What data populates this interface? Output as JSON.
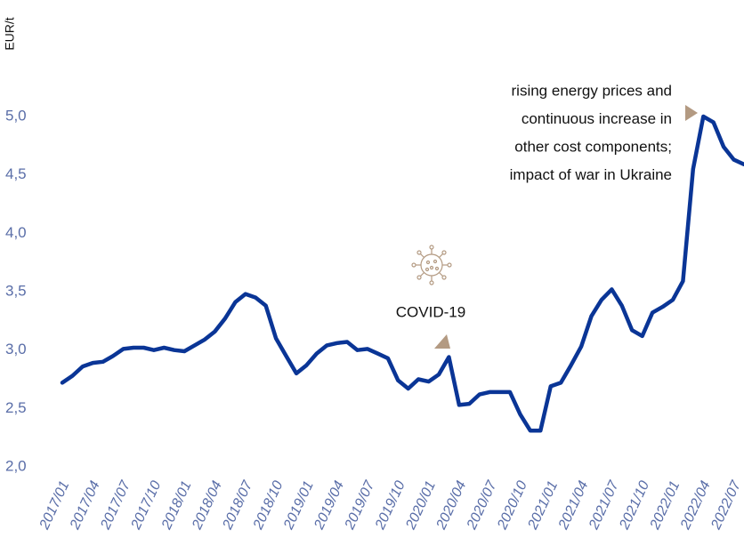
{
  "chart_data": {
    "type": "line",
    "y_label": "EUR/t",
    "annotations": [
      {
        "lines": [
          "rising energy prices and",
          "continuous increase in",
          "other cost components;",
          "impact of war in Ukraine"
        ]
      },
      {
        "lines": [
          "COVID-19"
        ]
      }
    ],
    "categories": [
      "2017/01",
      null,
      null,
      "2017/04",
      null,
      null,
      "2017/07",
      null,
      null,
      "2017/10",
      null,
      null,
      "2018/01",
      null,
      null,
      "2018/04",
      null,
      null,
      "2018/07",
      null,
      null,
      "2018/10",
      null,
      null,
      "2019/01",
      null,
      null,
      "2019/04",
      null,
      null,
      "2019/07",
      null,
      null,
      "2019/10",
      null,
      null,
      "2020/01",
      null,
      null,
      "2020/04",
      null,
      null,
      "2020/07",
      null,
      null,
      "2020/10",
      null,
      null,
      "2021/01",
      null,
      null,
      "2021/04",
      null,
      null,
      "2021/07",
      null,
      null,
      "2021/10",
      null,
      null,
      "2022/01",
      null,
      null,
      "2022/04",
      null,
      null,
      "2022/07",
      null
    ],
    "series": [
      {
        "color": "#0a3596",
        "values": [
          2.72,
          2.78,
          2.86,
          2.89,
          2.9,
          2.95,
          3.01,
          3.02,
          3.02,
          3.0,
          3.02,
          3.0,
          2.99,
          3.04,
          3.09,
          3.16,
          3.27,
          3.41,
          3.48,
          3.45,
          3.38,
          3.1,
          2.95,
          2.8,
          2.87,
          2.97,
          3.04,
          3.06,
          3.07,
          3.0,
          3.01,
          2.97,
          2.93,
          2.74,
          2.67,
          2.75,
          2.73,
          2.79,
          2.94,
          2.53,
          2.54,
          2.62,
          2.64,
          2.64,
          2.64,
          2.45,
          2.31,
          2.31,
          2.69,
          2.72,
          2.87,
          3.03,
          3.29,
          3.43,
          3.52,
          3.38,
          3.17,
          3.12,
          3.32,
          3.37,
          3.43,
          3.59,
          4.55,
          5.0,
          4.95,
          4.74,
          4.63,
          4.59
        ]
      }
    ],
    "ylim": [
      2,
      5
    ],
    "yticks": [
      {
        "value": 2,
        "label": "2,0"
      },
      {
        "value": 2.5,
        "label": "2,5"
      },
      {
        "value": 3,
        "label": "3,0"
      },
      {
        "value": 3.5,
        "label": "3,5"
      },
      {
        "value": 4,
        "label": "4,0"
      },
      {
        "value": 4.5,
        "label": "4,5"
      },
      {
        "value": 5,
        "label": "5,0"
      }
    ]
  }
}
